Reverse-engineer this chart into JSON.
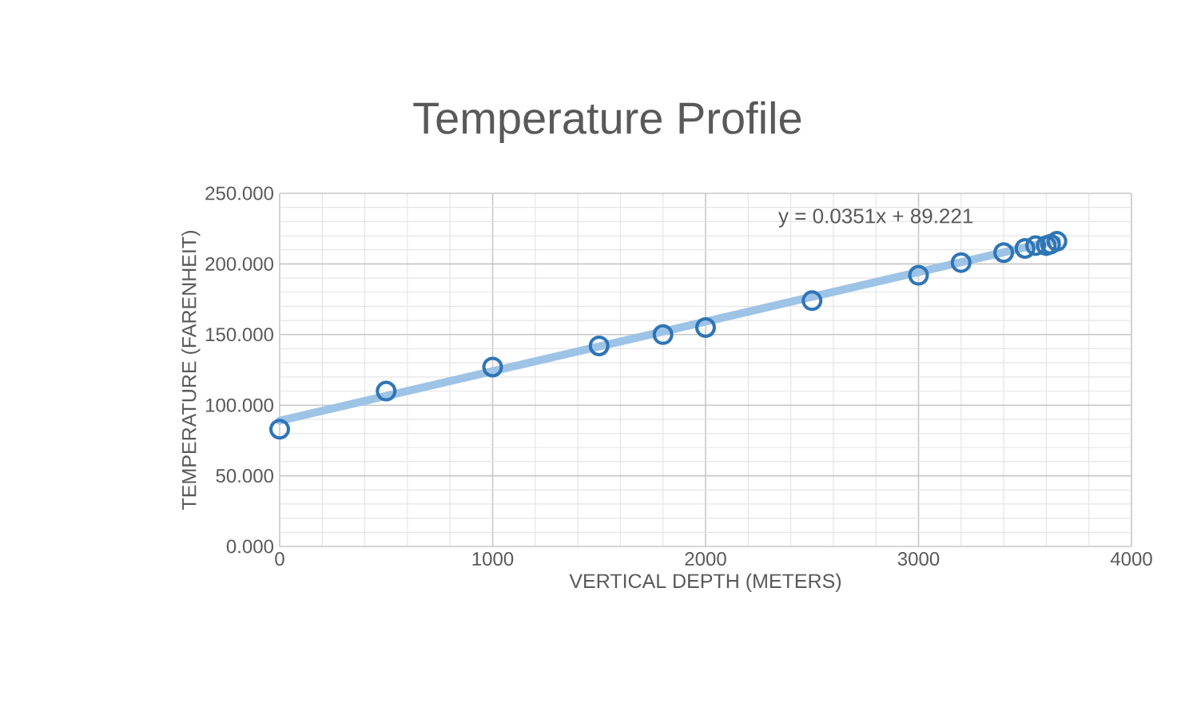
{
  "chart_data": {
    "type": "scatter",
    "title": "Temperature Profile",
    "xlabel": "VERTICAL DEPTH (METERS)",
    "ylabel": "TEMPERATURE (FARENHEIT)",
    "x": [
      0,
      500,
      1000,
      1500,
      1800,
      2000,
      2500,
      3000,
      3200,
      3400,
      3500,
      3550,
      3600,
      3620,
      3650
    ],
    "series": [
      {
        "color": "#2e75b6",
        "values": [
          83,
          110,
          127,
          142,
          150,
          155,
          174,
          192,
          201,
          208,
          211,
          213,
          213,
          214,
          216
        ]
      },
      {
        "type": "line",
        "marker": "none",
        "color": "#9dc3e6",
        "x": [
          0,
          3650
        ],
        "values": [
          89,
          217
        ]
      }
    ],
    "annotations": [
      "y = 0.0351x + 89.221"
    ],
    "xlim": [
      0,
      4000
    ],
    "xticks": [
      0,
      1000,
      2000,
      3000,
      4000
    ],
    "ylim": [
      0,
      250
    ],
    "yticks": [
      {
        "value": 0,
        "label": "0.000"
      },
      {
        "value": 50,
        "label": "50.000"
      },
      {
        "value": 100,
        "label": "100.000"
      },
      {
        "value": 150,
        "label": "150.000"
      },
      {
        "value": 200,
        "label": "200.000"
      },
      {
        "value": 250,
        "label": "250.000"
      }
    ],
    "grid": true,
    "marker": "circle"
  }
}
